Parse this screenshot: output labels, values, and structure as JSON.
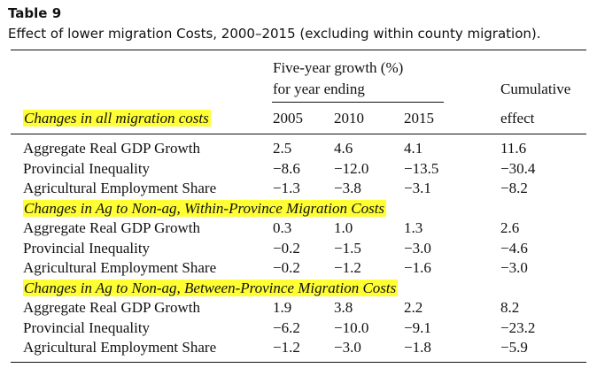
{
  "table": {
    "label": "Table 9",
    "caption": "Effect of lower migration Costs, 2000–2015 (excluding within county migration).",
    "header": {
      "growth_line1": "Five-year growth (%)",
      "growth_line2": "for year ending",
      "cumulative_line1": "Cumulative",
      "cumulative_line2": "effect",
      "years": [
        "2005",
        "2010",
        "2015"
      ]
    },
    "highlight_color": "#ffff33",
    "sections": [
      {
        "title": "Changes in all migration costs",
        "rows": [
          {
            "label": "Aggregate Real GDP Growth",
            "v2005": "2.5",
            "v2010": "4.6",
            "v2015": "4.1",
            "cumulative": "11.6"
          },
          {
            "label": "Provincial Inequality",
            "v2005": "−8.6",
            "v2010": "−12.0",
            "v2015": "−13.5",
            "cumulative": "−30.4"
          },
          {
            "label": "Agricultural Employment Share",
            "v2005": "−1.3",
            "v2010": "−3.8",
            "v2015": "−3.1",
            "cumulative": "−8.2"
          }
        ]
      },
      {
        "title": "Changes in Ag to Non-ag, Within-Province Migration Costs",
        "rows": [
          {
            "label": "Aggregate Real GDP Growth",
            "v2005": "0.3",
            "v2010": "1.0",
            "v2015": "1.3",
            "cumulative": "2.6"
          },
          {
            "label": "Provincial Inequality",
            "v2005": "−0.2",
            "v2010": "−1.5",
            "v2015": "−3.0",
            "cumulative": "−4.6"
          },
          {
            "label": "Agricultural Employment Share",
            "v2005": "−0.2",
            "v2010": "−1.2",
            "v2015": "−1.6",
            "cumulative": "−3.0"
          }
        ]
      },
      {
        "title": "Changes in Ag to Non-ag, Between-Province Migration Costs",
        "rows": [
          {
            "label": "Aggregate Real GDP Growth",
            "v2005": "1.9",
            "v2010": "3.8",
            "v2015": "2.2",
            "cumulative": "8.2"
          },
          {
            "label": "Provincial Inequality",
            "v2005": "−6.2",
            "v2010": "−10.0",
            "v2015": "−9.1",
            "cumulative": "−23.2"
          },
          {
            "label": "Agricultural Employment Share",
            "v2005": "−1.2",
            "v2010": "−3.0",
            "v2015": "−1.8",
            "cumulative": "−5.9"
          }
        ]
      }
    ]
  }
}
